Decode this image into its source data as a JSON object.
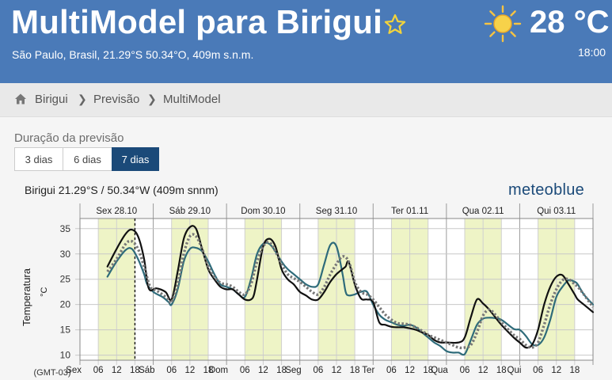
{
  "header": {
    "title": "MultiModel para Birigui",
    "subtitle": "São Paulo, Brasil, 21.29°S 50.34°O, 409m s.n.m.",
    "current_temp": "28 °C",
    "current_time": "18:00",
    "weather_icon": "sun-icon",
    "favorite_icon": "star-outline-icon",
    "bg_color": "#4a7ab8"
  },
  "breadcrumb": {
    "home_icon": "home-icon",
    "items": [
      "Birigui",
      "Previsão",
      "MultiModel"
    ],
    "separator": "❯"
  },
  "duration": {
    "label": "Duração da previsão",
    "options": [
      "3 dias",
      "6 dias",
      "7 dias"
    ],
    "selected": "7 dias"
  },
  "meteogram": {
    "location_line": "Birigui  21.29°S / 50.34°W (409m snnm)",
    "brand": "meteoblue",
    "timezone": "(GMT-03)",
    "ylabel": "Temperatura",
    "unit": "°C"
  },
  "chart_data": {
    "type": "line",
    "title": "",
    "ylabel": "Temperatura",
    "yunit": "°C",
    "ylim": [
      9,
      37
    ],
    "yticks": [
      10,
      15,
      20,
      25,
      30,
      35
    ],
    "day_labels": [
      "Sex 28.10",
      "Sáb 29.10",
      "Dom 30.10",
      "Seg 31.10",
      "Ter 01.11",
      "Qua 02.11",
      "Qui 03.11"
    ],
    "x_tick_labels": [
      "Sex",
      "06",
      "12",
      "18",
      "Sáb",
      "06",
      "12",
      "18",
      "Dom",
      "06",
      "12",
      "18",
      "Seg",
      "06",
      "12",
      "18",
      "Ter",
      "06",
      "12",
      "18",
      "Qua",
      "06",
      "12",
      "18",
      "Qui",
      "06",
      "12",
      "18"
    ],
    "x_unit": "hours since Sex 28.10 00:00",
    "xlim": [
      0,
      168
    ],
    "daylight_bands": [
      [
        6,
        18
      ],
      [
        30,
        42
      ],
      [
        54,
        66
      ],
      [
        78,
        90
      ],
      [
        102,
        114
      ],
      [
        126,
        138
      ],
      [
        150,
        162
      ]
    ],
    "current_time_marker": 18,
    "grid": true,
    "series": [
      {
        "color": "#111111",
        "style": "solid",
        "x": [
          9,
          12,
          15,
          17,
          19,
          21,
          22,
          23,
          25,
          28,
          30,
          32,
          34,
          36,
          38,
          40,
          42,
          44,
          46,
          48,
          50,
          52,
          54,
          56,
          57,
          58,
          60,
          62,
          64,
          66,
          68,
          70,
          72,
          74,
          76,
          78,
          80,
          82,
          84,
          86,
          87,
          88,
          90,
          92,
          94,
          96,
          98,
          100,
          102,
          104,
          106,
          108,
          110,
          112,
          114,
          116,
          118,
          120,
          124,
          126,
          128,
          130,
          132,
          134,
          136,
          138,
          142,
          144,
          146,
          148,
          150,
          152,
          154,
          156,
          158,
          160,
          162,
          163,
          165,
          168
        ],
        "y": [
          27.5,
          31,
          34,
          34.8,
          33.5,
          29,
          24.5,
          22.8,
          23.2,
          22.5,
          21,
          26.5,
          33,
          35.3,
          35,
          31,
          27,
          25,
          23.5,
          23,
          23,
          22,
          21,
          21,
          22,
          25,
          31.5,
          33,
          31.5,
          27,
          25,
          24,
          22.5,
          21.8,
          21,
          21,
          22.5,
          24.5,
          26,
          27,
          27.5,
          28.4,
          24,
          21.2,
          21,
          20.5,
          16.5,
          16,
          15.6,
          15.5,
          15.5,
          15.3,
          15,
          14.5,
          14,
          13,
          12.5,
          12.5,
          12.5,
          13.5,
          17.5,
          21,
          20.2,
          19,
          17.5,
          16,
          13.5,
          12.5,
          11.5,
          12,
          15,
          20,
          23.5,
          25.5,
          25.8,
          24,
          22,
          21,
          20,
          18.5
        ]
      },
      {
        "color": "#2e6b7a",
        "style": "solid",
        "x": [
          9,
          12,
          15,
          17,
          19,
          21,
          22,
          24,
          27,
          29,
          30,
          32,
          34,
          36,
          38,
          40,
          42,
          44,
          46,
          48,
          50,
          52,
          54,
          56,
          58,
          60,
          62,
          64,
          66,
          68,
          70,
          72,
          74,
          76,
          78,
          80,
          82,
          84,
          86,
          87,
          88,
          90,
          92,
          94,
          96,
          98,
          100,
          102,
          104,
          106,
          108,
          110,
          112,
          114,
          116,
          118,
          120,
          122,
          124,
          126,
          128,
          130,
          132,
          134,
          136,
          138,
          142,
          144,
          146,
          148,
          150,
          152,
          154,
          156,
          158,
          160,
          162,
          163,
          165,
          168
        ],
        "y": [
          25.5,
          28.5,
          30.8,
          31,
          29,
          26,
          24,
          22.5,
          21.5,
          20.5,
          20,
          23,
          28.5,
          31,
          31.2,
          30.5,
          28.5,
          26,
          24,
          23.5,
          23,
          22,
          21.5,
          25,
          30,
          32,
          32,
          30.5,
          28.5,
          27,
          26,
          25,
          24,
          23.5,
          24,
          28,
          31.8,
          31.5,
          26,
          22.5,
          21.8,
          22,
          22.5,
          22.5,
          20,
          18,
          17,
          16.5,
          16,
          15.8,
          16,
          15.5,
          14.5,
          13.5,
          12.5,
          11.8,
          10.8,
          10.5,
          10.5,
          10.2,
          13,
          16,
          17.2,
          17.4,
          17.3,
          17,
          15.2,
          15,
          13.8,
          12.2,
          12,
          13.5,
          17,
          21.5,
          23.5,
          24.8,
          24.5,
          24,
          22,
          20
        ]
      },
      {
        "color": "#777777",
        "style": "dotted",
        "x": [
          9,
          12,
          15,
          17,
          19,
          21,
          23,
          25,
          27,
          29,
          30,
          32,
          34,
          36,
          38,
          40,
          42,
          44,
          46,
          48,
          50,
          52,
          54,
          56,
          58,
          60,
          62,
          64,
          66,
          68,
          70,
          72,
          74,
          76,
          78,
          80,
          82,
          84,
          86,
          88,
          90,
          92,
          94,
          96,
          98,
          100,
          102,
          104,
          106,
          108,
          110,
          112,
          114,
          116,
          118,
          120,
          122,
          124,
          126,
          128,
          130,
          132,
          134,
          136,
          138,
          142,
          144,
          146,
          148,
          150,
          152,
          154,
          156,
          158,
          160,
          162,
          163,
          165,
          168
        ],
        "y": [
          26.5,
          29,
          32,
          32.5,
          31,
          27.5,
          23.5,
          22.8,
          22,
          21,
          20.5,
          24,
          30,
          33.5,
          33.5,
          31,
          27.5,
          25.5,
          24.3,
          24,
          23.5,
          22.5,
          22,
          24,
          28.5,
          31.5,
          32.3,
          30.5,
          28,
          26,
          25.2,
          24.5,
          23.5,
          22.5,
          22,
          23.5,
          26,
          28,
          29.5,
          28.5,
          24.5,
          22.5,
          22,
          21,
          19.5,
          18,
          17,
          16.3,
          16.2,
          16,
          15.5,
          14.8,
          14,
          13.5,
          13,
          12.5,
          12,
          11.5,
          11.5,
          12,
          14.5,
          17.8,
          19,
          18,
          16.5,
          14,
          13.2,
          12,
          11.5,
          12.5,
          16,
          20,
          23,
          24.8,
          25,
          24,
          23.5,
          22,
          19.5
        ]
      }
    ]
  }
}
